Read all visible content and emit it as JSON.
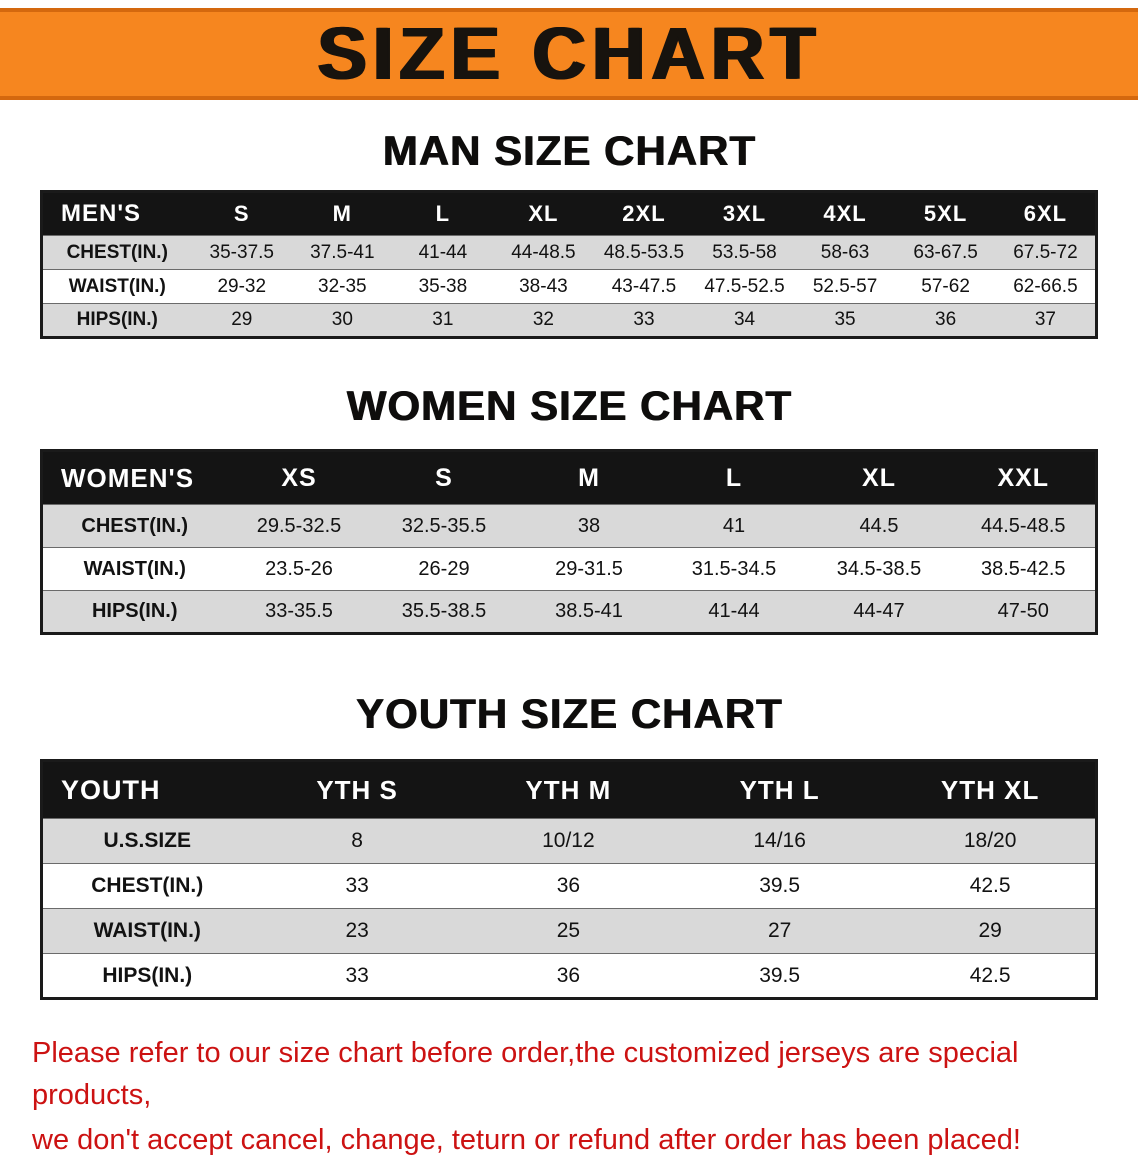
{
  "banner": {
    "title": "SIZE CHART"
  },
  "colors": {
    "banner_orange": "#f6861f",
    "banner_edge": "#d4680e",
    "table_header_black": "#141414",
    "stripe_gray": "#d9d9d9",
    "disclaimer_red": "#cc1212"
  },
  "sections": [
    {
      "heading": "MAN SIZE CHART",
      "table": {
        "header": [
          "MEN'S",
          "S",
          "M",
          "L",
          "XL",
          "2XL",
          "3XL",
          "4XL",
          "5XL",
          "6XL"
        ],
        "rows": [
          {
            "label": "CHEST(IN.)",
            "values": [
              "35-37.5",
              "37.5-41",
              "41-44",
              "44-48.5",
              "48.5-53.5",
              "53.5-58",
              "58-63",
              "63-67.5",
              "67.5-72"
            ]
          },
          {
            "label": "WAIST(IN.)",
            "values": [
              "29-32",
              "32-35",
              "35-38",
              "38-43",
              "43-47.5",
              "47.5-52.5",
              "52.5-57",
              "57-62",
              "62-66.5"
            ]
          },
          {
            "label": "HIPS(IN.)",
            "values": [
              "29",
              "30",
              "31",
              "32",
              "33",
              "34",
              "35",
              "36",
              "37"
            ]
          }
        ]
      }
    },
    {
      "heading": "WOMEN SIZE CHART",
      "table": {
        "header": [
          "WOMEN'S",
          "XS",
          "S",
          "M",
          "L",
          "XL",
          "XXL"
        ],
        "rows": [
          {
            "label": "CHEST(IN.)",
            "values": [
              "29.5-32.5",
              "32.5-35.5",
              "38",
              "41",
              "44.5",
              "44.5-48.5"
            ]
          },
          {
            "label": "WAIST(IN.)",
            "values": [
              "23.5-26",
              "26-29",
              "29-31.5",
              "31.5-34.5",
              "34.5-38.5",
              "38.5-42.5"
            ]
          },
          {
            "label": "HIPS(IN.)",
            "values": [
              "33-35.5",
              "35.5-38.5",
              "38.5-41",
              "41-44",
              "44-47",
              "47-50"
            ]
          }
        ]
      }
    },
    {
      "heading": "YOUTH SIZE CHART",
      "table": {
        "header": [
          "YOUTH",
          "YTH S",
          "YTH M",
          "YTH L",
          "YTH XL"
        ],
        "rows": [
          {
            "label": "U.S.SIZE",
            "values": [
              "8",
              "10/12",
              "14/16",
              "18/20"
            ]
          },
          {
            "label": "CHEST(IN.)",
            "values": [
              "33",
              "36",
              "39.5",
              "42.5"
            ]
          },
          {
            "label": "WAIST(IN.)",
            "values": [
              "23",
              "25",
              "27",
              "29"
            ]
          },
          {
            "label": "HIPS(IN.)",
            "values": [
              "33",
              "36",
              "39.5",
              "42.5"
            ]
          }
        ]
      }
    }
  ],
  "disclaimer": {
    "line1": "Please refer to our size chart before order,the customized jerseys are special products,",
    "line2": "we don't accept cancel, change, teturn or refund after order has been placed!"
  }
}
